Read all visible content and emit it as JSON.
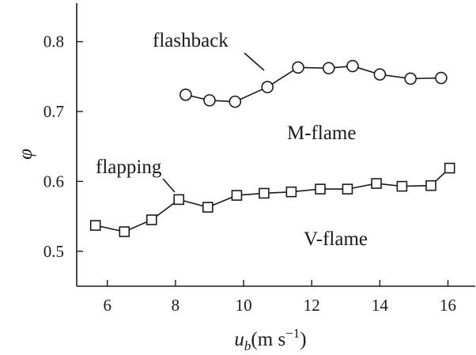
{
  "chart_data": {
    "type": "line",
    "xlabel": "u_b(m s^-1)",
    "xlabel_parts": {
      "symbol": "u",
      "subscript": "b",
      "units": "(m s",
      "exponent": "−1",
      "close": ")"
    },
    "ylabel": "φ",
    "xlim": [
      5.1,
      16.8
    ],
    "ylim": [
      0.45,
      0.855
    ],
    "x_ticks": [
      6,
      8,
      10,
      12,
      14,
      16
    ],
    "y_ticks": [
      0.5,
      0.6,
      0.7,
      0.8
    ],
    "x_tick_labels": [
      "6",
      "8",
      "10",
      "12",
      "14",
      "16"
    ],
    "y_tick_labels": [
      "0.5",
      "0.6",
      "0.7",
      "0.8"
    ],
    "grid": false,
    "series": [
      {
        "marker": "circle",
        "x": [
          8.3,
          9.0,
          9.75,
          10.7,
          11.6,
          12.5,
          13.2,
          14.0,
          14.9,
          15.8
        ],
        "y": [
          0.724,
          0.716,
          0.714,
          0.735,
          0.763,
          0.762,
          0.765,
          0.753,
          0.747,
          0.748
        ]
      },
      {
        "marker": "square",
        "x": [
          5.65,
          6.5,
          7.3,
          8.1,
          8.95,
          9.8,
          10.6,
          11.4,
          12.25,
          13.05,
          13.9,
          14.65,
          15.5,
          16.05
        ],
        "y": [
          0.537,
          0.528,
          0.545,
          0.574,
          0.563,
          0.58,
          0.583,
          0.585,
          0.589,
          0.589,
          0.597,
          0.593,
          0.594,
          0.619
        ]
      }
    ],
    "annotations": [
      {
        "text": "flashback",
        "role": "label-with-pointer"
      },
      {
        "text": "M-flame",
        "role": "region-label"
      },
      {
        "text": "flapping",
        "role": "label-with-pointer"
      },
      {
        "text": "V-flame",
        "role": "region-label"
      }
    ]
  }
}
